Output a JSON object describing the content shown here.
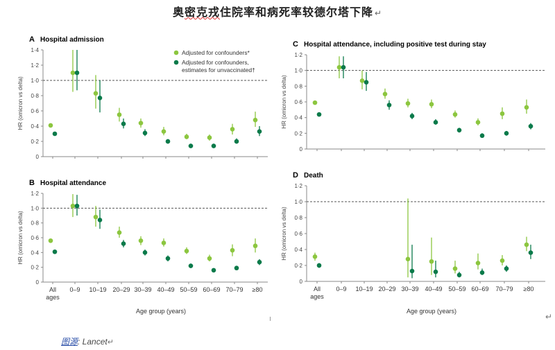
{
  "header": {
    "title_prefix": "奥",
    "title_underlined": "密克戎",
    "title_suffix": "住院率和病死率较德尔塔下降",
    "para_mark": "↵"
  },
  "source": {
    "label": "图源",
    "text": ": Lancet",
    "para_mark": "↵"
  },
  "end_mark": "↵",
  "colors": {
    "adjusted": "#8cc63f",
    "unvaccinated": "#0a7a4a",
    "reference_line": "#555555",
    "axis": "#888888"
  },
  "chart_data": [
    {
      "type": "scatter",
      "letter": "A",
      "title": "Hospital admission",
      "ylabel": "HR (omicron vs delta)",
      "ylim": [
        0,
        1.4
      ],
      "yticks": [
        "0",
        "0·2",
        "0·4",
        "0·6",
        "0·8",
        "1·0",
        "1·2",
        "1·4"
      ],
      "ytick_values": [
        0,
        0.2,
        0.4,
        0.6,
        0.8,
        1.0,
        1.2,
        1.4
      ],
      "reference_line": 1.0,
      "legend": [
        "Adjusted for confounders*",
        "Adjusted for confounders,",
        "estimates for unvaccinated†"
      ],
      "categories": [
        "All ages",
        "0–9",
        "10–19",
        "20–29",
        "30–39",
        "40–49",
        "50–59",
        "60–69",
        "70–79",
        "≥80"
      ],
      "series": [
        {
          "name": "Adjusted for confounders*",
          "values": [
            0.41,
            1.1,
            0.83,
            0.55,
            0.44,
            0.33,
            0.26,
            0.25,
            0.36,
            0.48
          ],
          "lower": [
            null,
            0.85,
            0.63,
            0.46,
            0.38,
            0.28,
            0.23,
            0.21,
            0.29,
            0.39
          ],
          "upper": [
            null,
            1.4,
            1.07,
            0.64,
            0.5,
            0.39,
            0.3,
            0.29,
            0.43,
            0.59
          ]
        },
        {
          "name": "Adjusted for confounders, estimates for unvaccinated†",
          "values": [
            0.3,
            1.1,
            0.77,
            0.43,
            0.31,
            0.2,
            0.14,
            0.14,
            0.2,
            0.33
          ],
          "lower": [
            null,
            0.87,
            0.58,
            0.37,
            0.27,
            0.17,
            0.12,
            0.12,
            0.17,
            0.27
          ],
          "upper": [
            null,
            1.4,
            1.0,
            0.5,
            0.36,
            0.23,
            0.17,
            0.17,
            0.24,
            0.4
          ]
        }
      ]
    },
    {
      "type": "scatter",
      "letter": "B",
      "title": "Hospital attendance",
      "ylabel": "HR (omicron vs delta)",
      "ylim": [
        0,
        1.2
      ],
      "yticks": [
        "0",
        "0·2",
        "0·4",
        "0·6",
        "0·8",
        "1·0",
        "1·2"
      ],
      "ytick_values": [
        0,
        0.2,
        0.4,
        0.6,
        0.8,
        1.0,
        1.2
      ],
      "reference_line": 1.0,
      "categories": [
        "All ages",
        "0–9",
        "10–19",
        "20–29",
        "30–39",
        "40–49",
        "50–59",
        "60–69",
        "70–79",
        "≥80"
      ],
      "xlabel": "Age group (years)",
      "series": [
        {
          "name": "Adjusted for confounders*",
          "values": [
            0.56,
            1.03,
            0.88,
            0.67,
            0.56,
            0.53,
            0.42,
            0.32,
            0.43,
            0.49
          ],
          "lower": [
            null,
            0.88,
            0.75,
            0.6,
            0.5,
            0.48,
            0.38,
            0.28,
            0.35,
            0.4
          ],
          "upper": [
            null,
            1.19,
            1.03,
            0.75,
            0.62,
            0.59,
            0.47,
            0.37,
            0.51,
            0.59
          ]
        },
        {
          "name": "Adjusted for confounders, estimates for unvaccinated†",
          "values": [
            0.41,
            1.03,
            0.84,
            0.52,
            0.4,
            0.32,
            0.22,
            0.16,
            0.19,
            0.27
          ],
          "lower": [
            null,
            0.9,
            0.72,
            0.47,
            0.36,
            0.28,
            0.19,
            0.14,
            0.16,
            0.23
          ],
          "upper": [
            null,
            1.18,
            0.98,
            0.57,
            0.44,
            0.36,
            0.25,
            0.18,
            0.22,
            0.31
          ]
        }
      ]
    },
    {
      "type": "scatter",
      "letter": "C",
      "title": "Hospital attendance, including positive test during stay",
      "ylabel": "HR (omicron vs delta)",
      "ylim": [
        0,
        1.2
      ],
      "yticks": [
        "0",
        "0·2",
        "0·4",
        "0·6",
        "0·8",
        "1·0",
        "1·2"
      ],
      "ytick_values": [
        0,
        0.2,
        0.4,
        0.6,
        0.8,
        1.0,
        1.2
      ],
      "reference_line": 1.0,
      "categories": [
        "All ages",
        "0–9",
        "10–19",
        "20–29",
        "30–39",
        "40–49",
        "50–59",
        "60–69",
        "70–79",
        "≥80"
      ],
      "series": [
        {
          "name": "Adjusted for confounders*",
          "values": [
            0.59,
            1.04,
            0.87,
            0.7,
            0.58,
            0.57,
            0.44,
            0.34,
            0.45,
            0.53
          ],
          "lower": [
            null,
            0.9,
            0.76,
            0.64,
            0.53,
            0.52,
            0.4,
            0.3,
            0.38,
            0.45
          ],
          "upper": [
            null,
            1.18,
            1.0,
            0.77,
            0.64,
            0.63,
            0.49,
            0.39,
            0.53,
            0.63
          ]
        },
        {
          "name": "Adjusted for confounders, estimates for unvaccinated†",
          "values": [
            0.44,
            1.04,
            0.85,
            0.56,
            0.42,
            0.34,
            0.24,
            0.17,
            0.2,
            0.29
          ],
          "lower": [
            null,
            0.9,
            0.74,
            0.5,
            0.38,
            0.31,
            0.21,
            0.15,
            0.17,
            0.25
          ],
          "upper": [
            null,
            1.18,
            0.98,
            0.62,
            0.46,
            0.38,
            0.27,
            0.2,
            0.23,
            0.33
          ]
        }
      ]
    },
    {
      "type": "scatter",
      "letter": "D",
      "title": "Death",
      "ylabel": "HR (omicron vs delta)",
      "ylim": [
        0,
        1.2
      ],
      "yticks": [
        "0",
        "0·2",
        "0·4",
        "0·6",
        "0·8",
        "1·0",
        "1·2"
      ],
      "ytick_values": [
        0,
        0.2,
        0.4,
        0.6,
        0.8,
        1.0,
        1.2
      ],
      "reference_line": 1.0,
      "categories": [
        "All ages",
        "0–9",
        "10–19",
        "20–29",
        "30–39",
        "40–49",
        "50–59",
        "60–69",
        "70–79",
        "≥80"
      ],
      "xlabel": "Age group (years)",
      "series": [
        {
          "name": "Adjusted for confounders*",
          "values": [
            0.31,
            null,
            null,
            null,
            0.28,
            0.25,
            0.16,
            0.23,
            0.26,
            0.46
          ],
          "lower": [
            0.26,
            null,
            null,
            null,
            0.05,
            0.08,
            0.1,
            0.15,
            0.2,
            0.38
          ],
          "upper": [
            0.36,
            null,
            null,
            null,
            1.04,
            0.55,
            0.26,
            0.35,
            0.33,
            0.56
          ]
        },
        {
          "name": "Adjusted for confounders, estimates for unvaccinated†",
          "values": [
            0.2,
            null,
            null,
            null,
            0.13,
            0.12,
            0.08,
            0.11,
            0.16,
            0.36
          ],
          "lower": [
            0.17,
            null,
            null,
            null,
            0.04,
            0.05,
            0.05,
            0.08,
            0.12,
            0.28
          ],
          "upper": [
            0.23,
            null,
            null,
            null,
            0.46,
            0.26,
            0.12,
            0.16,
            0.2,
            0.46
          ]
        }
      ]
    }
  ]
}
